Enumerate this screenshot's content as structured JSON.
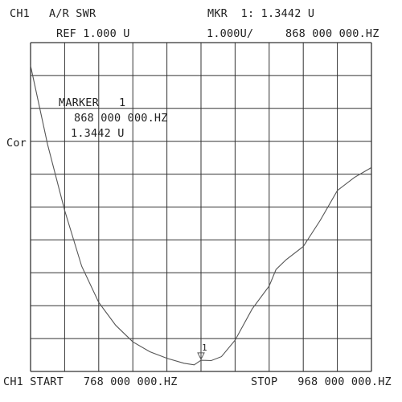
{
  "header": {
    "channel": "CH1",
    "format": "A/R SWR",
    "marker_readout": "MKR  1: 1.3442 U",
    "ref": "REF 1.000 U",
    "scale": "1.000U/",
    "marker_freq": "868 000 000.HZ"
  },
  "marker_box": {
    "title": "MARKER   1",
    "freq": "868 000 000.HZ",
    "value": "1.3442 U"
  },
  "side_label": "Cor",
  "footer": {
    "start": "CH1 START   768 000 000.HZ",
    "stop": "STOP   968 000 000.HZ"
  },
  "colors": {
    "trace": "#555555",
    "grid": "#333333",
    "text": "#222222"
  },
  "chart_data": {
    "type": "line",
    "title": "",
    "xlabel": "",
    "ylabel": "",
    "x_unit": "Hz",
    "y_unit": "U",
    "xlim": [
      768000000,
      968000000
    ],
    "ylim": [
      1.0,
      11.0
    ],
    "x_divisions": 10,
    "y_divisions": 10,
    "grid": true,
    "marker": {
      "label": "1",
      "x": 868000000,
      "y": 1.3442
    },
    "series": [
      {
        "x": [
          768000000,
          778000000,
          788000000,
          798000000,
          808000000,
          818000000,
          828000000,
          838000000,
          848000000,
          858000000,
          864000000,
          868000000,
          874000000,
          880000000,
          888000000,
          898000000,
          908000000,
          912000000,
          918000000,
          928000000,
          938000000,
          948000000,
          958000000,
          968000000
        ],
        "y": [
          10.3,
          7.9,
          5.9,
          4.2,
          3.1,
          2.4,
          1.9,
          1.6,
          1.4,
          1.25,
          1.2,
          1.34,
          1.33,
          1.45,
          1.95,
          2.9,
          3.6,
          4.1,
          4.4,
          4.8,
          5.6,
          6.5,
          6.9,
          7.2
        ]
      }
    ]
  }
}
